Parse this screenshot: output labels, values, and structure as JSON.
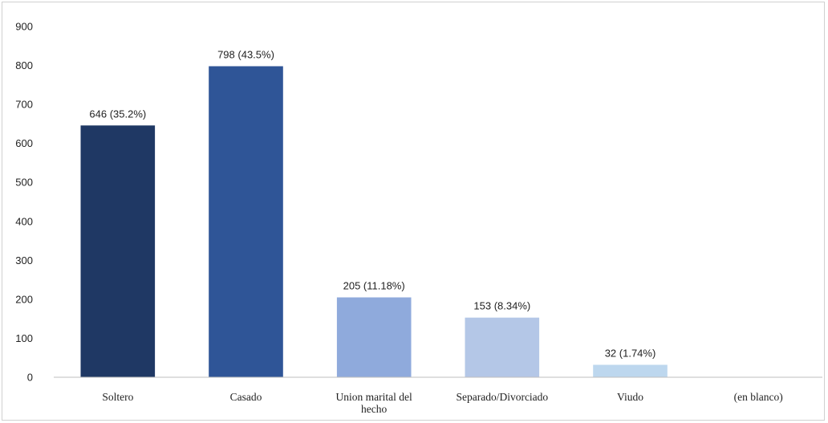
{
  "chart_data": {
    "type": "bar",
    "title": "",
    "xlabel": "",
    "ylabel": "",
    "ylim": [
      0,
      900
    ],
    "yticks": [
      0,
      100,
      200,
      300,
      400,
      500,
      600,
      700,
      800,
      900
    ],
    "grid": false,
    "legend": "none",
    "categories": [
      [
        "Soltero"
      ],
      [
        "Casado"
      ],
      [
        "Union marital del",
        "hecho"
      ],
      [
        "Separado/Divorciado"
      ],
      [
        "Viudo"
      ],
      [
        "(en blanco)"
      ]
    ],
    "values": [
      646,
      798,
      205,
      153,
      32,
      0
    ],
    "data_labels": [
      "646 (35.2%)",
      "798 (43.5%)",
      "205 (11.18%)",
      "153 (8.34%)",
      "32 (1.74%)",
      ""
    ],
    "colors": [
      "#1f3864",
      "#2f5597",
      "#8faadc",
      "#b4c7e7",
      "#bdd7ee",
      "#deebf7"
    ],
    "axis_color": "#bfbfbf"
  }
}
